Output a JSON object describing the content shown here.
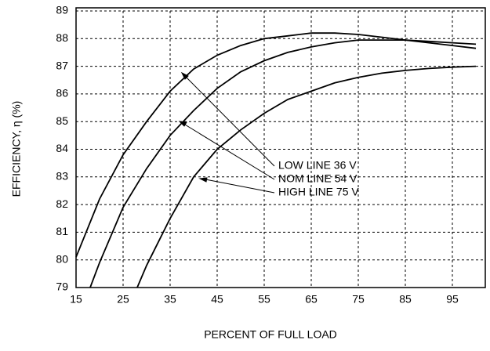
{
  "chart_data": {
    "type": "line",
    "x_label": "PERCENT OF FULL LOAD",
    "y_label": "EFFICIENCY, η (%)",
    "xlim": [
      15,
      102
    ],
    "ylim": [
      79,
      89
    ],
    "xticks": [
      15,
      25,
      35,
      45,
      55,
      65,
      75,
      85,
      95
    ],
    "yticks": [
      79,
      80,
      81,
      82,
      83,
      84,
      85,
      86,
      87,
      88,
      89
    ],
    "grid": true,
    "series": [
      {
        "name": "LOW LINE 36 V",
        "color": "#000000",
        "x": [
          15,
          20,
          25,
          30,
          35,
          40,
          45,
          50,
          55,
          60,
          65,
          70,
          75,
          80,
          85,
          90,
          95,
          100
        ],
        "values": [
          80.1,
          82.2,
          83.8,
          85.0,
          86.1,
          86.9,
          87.4,
          87.75,
          88.0,
          88.1,
          88.2,
          88.2,
          88.15,
          88.05,
          87.95,
          87.85,
          87.75,
          87.65
        ]
      },
      {
        "name": "NOM LINE 54 V",
        "color": "#000000",
        "x": [
          18,
          20,
          25,
          30,
          35,
          40,
          45,
          50,
          55,
          60,
          65,
          70,
          75,
          80,
          85,
          90,
          95,
          100
        ],
        "values": [
          79.0,
          79.9,
          81.9,
          83.3,
          84.5,
          85.4,
          86.2,
          86.8,
          87.2,
          87.5,
          87.7,
          87.85,
          87.95,
          87.95,
          87.95,
          87.9,
          87.85,
          87.8
        ]
      },
      {
        "name": "HIGH LINE 75 V",
        "color": "#000000",
        "x": [
          28,
          30,
          35,
          40,
          45,
          50,
          55,
          60,
          65,
          70,
          75,
          80,
          85,
          90,
          95,
          100
        ],
        "values": [
          79.0,
          79.8,
          81.5,
          83.0,
          84.0,
          84.7,
          85.3,
          85.8,
          86.1,
          86.4,
          86.6,
          86.75,
          86.85,
          86.92,
          86.97,
          87.0
        ]
      }
    ]
  }
}
